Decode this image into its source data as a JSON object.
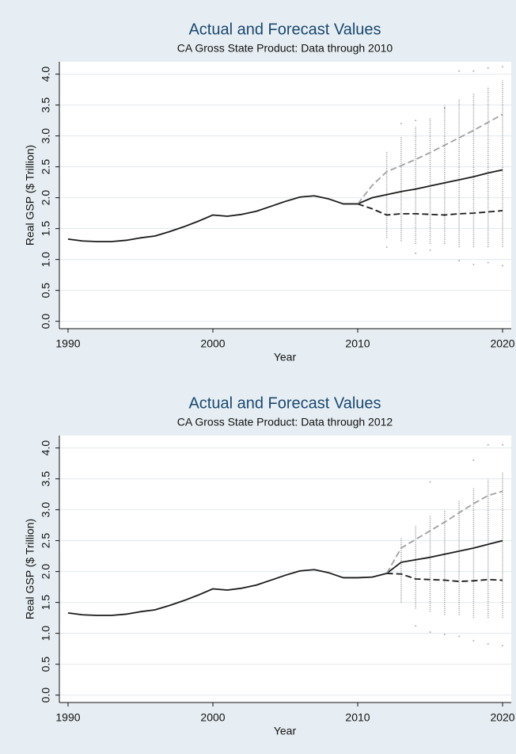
{
  "chart_data": [
    {
      "type": "line",
      "title": "Actual and Forecast Values",
      "subtitle": "CA Gross State Product: Data through 2010",
      "x_label": "Year",
      "y_label": "Real GSP ($ Trillion)",
      "xlim": [
        1989.4,
        2020.6
      ],
      "xticks": [
        1990,
        2000,
        2010,
        2020
      ],
      "ylim": [
        -0.12,
        4.2
      ],
      "yticks": [
        {
          "value": 0,
          "label": "0.0"
        },
        {
          "value": 0.5,
          "label": "0.5"
        },
        {
          "value": 1,
          "label": "1.0"
        },
        {
          "value": 1.5,
          "label": "1.5"
        },
        {
          "value": 2,
          "label": "2.0"
        },
        {
          "value": 2.5,
          "label": "2.5"
        },
        {
          "value": 3,
          "label": "3.0"
        },
        {
          "value": 3.5,
          "label": "3.5"
        },
        {
          "value": 4,
          "label": "4.0"
        }
      ],
      "grid": true,
      "simulations": {
        "color": "#9a9a9a",
        "x": [
          2012,
          2013,
          2014,
          2015,
          2016,
          2017,
          2018,
          2019,
          2020
        ],
        "low": [
          1.35,
          1.3,
          1.25,
          1.25,
          1.25,
          1.2,
          1.2,
          1.2,
          1.2
        ],
        "high": [
          2.75,
          3.0,
          3.15,
          3.3,
          3.5,
          3.6,
          3.7,
          3.8,
          3.9
        ]
      },
      "outliers": {
        "color": "#9a9a9a",
        "x": [
          2012,
          2013,
          2014,
          2014,
          2015,
          2016,
          2017,
          2017,
          2018,
          2018,
          2019,
          2019,
          2020,
          2020
        ],
        "y": [
          1.2,
          3.2,
          1.1,
          3.25,
          1.15,
          3.45,
          4.05,
          0.98,
          4.05,
          0.92,
          4.1,
          0.95,
          4.12,
          0.9
        ]
      },
      "series": [
        {
          "color": "#1a1a1a",
          "dash": false,
          "x": [
            1990,
            1991,
            1992,
            1993,
            1994,
            1995,
            1996,
            1997,
            1998,
            1999,
            2000,
            2001,
            2002,
            2003,
            2004,
            2005,
            2006,
            2007,
            2008,
            2009,
            2010
          ],
          "values": [
            1.33,
            1.3,
            1.29,
            1.29,
            1.31,
            1.35,
            1.38,
            1.45,
            1.53,
            1.62,
            1.72,
            1.7,
            1.73,
            1.78,
            1.86,
            1.94,
            2.01,
            2.03,
            1.98,
            1.9,
            1.9
          ]
        },
        {
          "color": "#1a1a1a",
          "dash": false,
          "x": [
            2010,
            2011,
            2012,
            2013,
            2014,
            2015,
            2016,
            2017,
            2018,
            2019,
            2020
          ],
          "values": [
            1.9,
            2.0,
            2.05,
            2.1,
            2.14,
            2.19,
            2.24,
            2.29,
            2.34,
            2.4,
            2.45
          ]
        },
        {
          "color": "#a0a0a0",
          "dash": true,
          "x": [
            2010,
            2011,
            2012,
            2013,
            2014,
            2015,
            2016,
            2017,
            2018,
            2019,
            2020
          ],
          "values": [
            1.9,
            2.2,
            2.42,
            2.52,
            2.62,
            2.73,
            2.85,
            2.97,
            3.09,
            3.22,
            3.35
          ]
        },
        {
          "color": "#1a1a1a",
          "dash": true,
          "x": [
            2010,
            2011,
            2012,
            2013,
            2014,
            2015,
            2016,
            2017,
            2018,
            2019,
            2020
          ],
          "values": [
            1.9,
            1.82,
            1.72,
            1.74,
            1.74,
            1.73,
            1.72,
            1.74,
            1.75,
            1.77,
            1.79
          ]
        }
      ]
    },
    {
      "type": "line",
      "title": "Actual and Forecast Values",
      "subtitle": "CA Gross State Product: Data through 2012",
      "x_label": "Year",
      "y_label": "Real GSP ($ Trillion)",
      "xlim": [
        1989.4,
        2020.6
      ],
      "xticks": [
        1990,
        2000,
        2010,
        2020
      ],
      "ylim": [
        -0.12,
        4.2
      ],
      "yticks": [
        {
          "value": 0,
          "label": "0.0"
        },
        {
          "value": 0.5,
          "label": "0.5"
        },
        {
          "value": 1,
          "label": "1.0"
        },
        {
          "value": 1.5,
          "label": "1.5"
        },
        {
          "value": 2,
          "label": "2.0"
        },
        {
          "value": 2.5,
          "label": "2.5"
        },
        {
          "value": 3,
          "label": "3.0"
        },
        {
          "value": 3.5,
          "label": "3.5"
        },
        {
          "value": 4,
          "label": "4.0"
        }
      ],
      "grid": true,
      "simulations": {
        "color": "#9a9a9a",
        "x": [
          2013,
          2014,
          2015,
          2016,
          2017,
          2018,
          2019,
          2020
        ],
        "low": [
          1.5,
          1.4,
          1.35,
          1.3,
          1.3,
          1.25,
          1.25,
          1.25
        ],
        "high": [
          2.55,
          2.75,
          2.9,
          3.0,
          3.15,
          3.35,
          3.5,
          3.6
        ]
      },
      "outliers": {
        "color": "#9a9a9a",
        "x": [
          2014,
          2015,
          2015,
          2016,
          2017,
          2018,
          2018,
          2019,
          2019,
          2020,
          2020
        ],
        "y": [
          1.12,
          3.45,
          1.02,
          0.98,
          0.95,
          3.8,
          0.88,
          4.05,
          0.83,
          4.05,
          0.8
        ]
      },
      "series": [
        {
          "color": "#1a1a1a",
          "dash": false,
          "x": [
            1990,
            1991,
            1992,
            1993,
            1994,
            1995,
            1996,
            1997,
            1998,
            1999,
            2000,
            2001,
            2002,
            2003,
            2004,
            2005,
            2006,
            2007,
            2008,
            2009,
            2010,
            2011,
            2012
          ],
          "values": [
            1.33,
            1.3,
            1.29,
            1.29,
            1.31,
            1.35,
            1.38,
            1.45,
            1.53,
            1.62,
            1.72,
            1.7,
            1.73,
            1.78,
            1.86,
            1.94,
            2.01,
            2.03,
            1.98,
            1.9,
            1.9,
            1.91,
            1.97
          ]
        },
        {
          "color": "#1a1a1a",
          "dash": false,
          "x": [
            2012,
            2013,
            2014,
            2015,
            2016,
            2017,
            2018,
            2019,
            2020
          ],
          "values": [
            1.97,
            2.15,
            2.19,
            2.23,
            2.28,
            2.33,
            2.38,
            2.44,
            2.5
          ]
        },
        {
          "color": "#a0a0a0",
          "dash": true,
          "x": [
            2012,
            2013,
            2014,
            2015,
            2016,
            2017,
            2018,
            2019,
            2020
          ],
          "values": [
            1.97,
            2.38,
            2.52,
            2.66,
            2.8,
            2.95,
            3.1,
            3.23,
            3.3
          ]
        },
        {
          "color": "#1a1a1a",
          "dash": true,
          "x": [
            2012,
            2013,
            2014,
            2015,
            2016,
            2017,
            2018,
            2019,
            2020
          ],
          "values": [
            1.97,
            1.96,
            1.88,
            1.87,
            1.86,
            1.84,
            1.85,
            1.87,
            1.86
          ]
        }
      ]
    }
  ]
}
